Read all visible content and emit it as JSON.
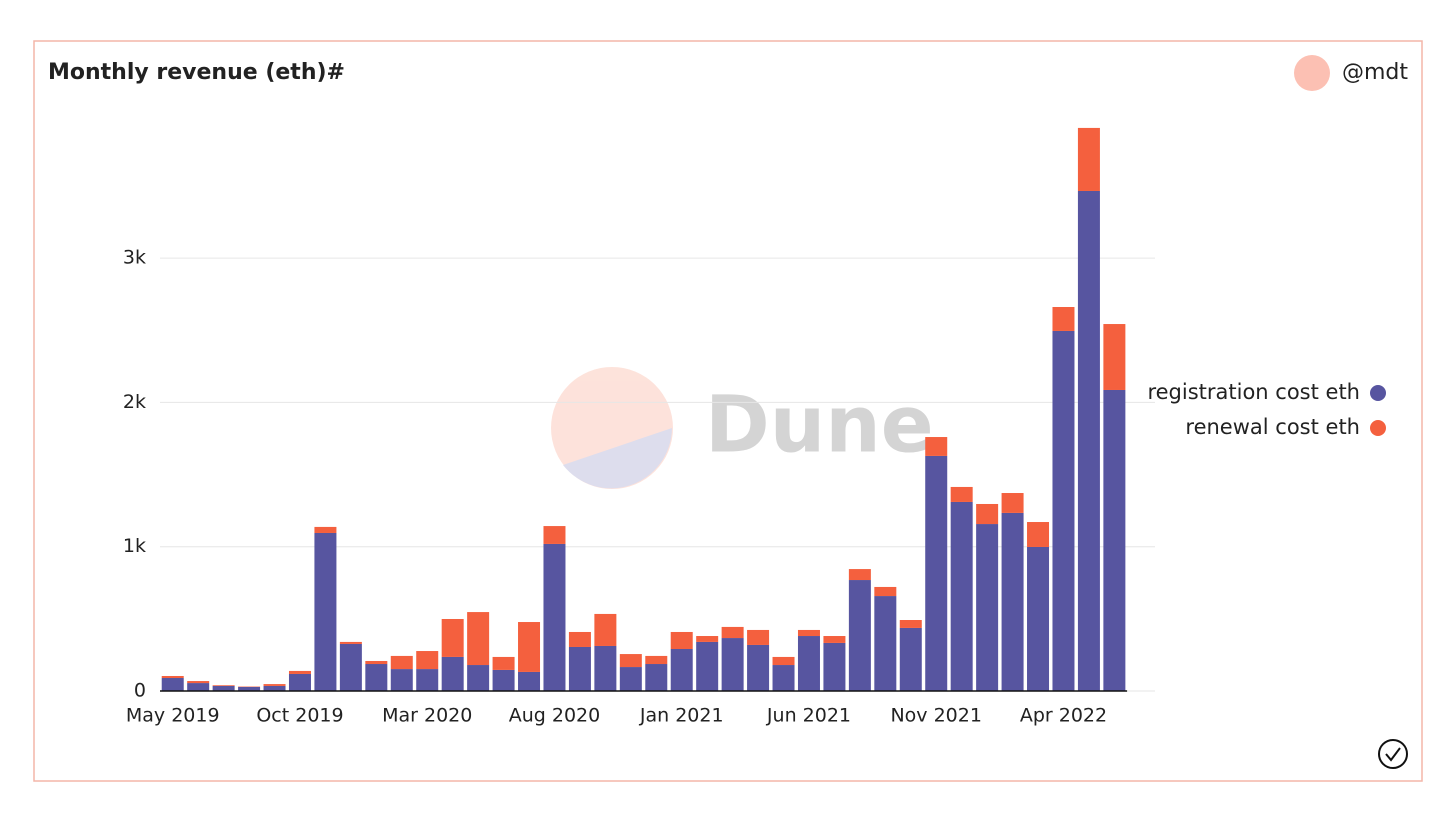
{
  "chart_data": {
    "type": "stacked_bar",
    "title": "Monthly revenue (eth)#",
    "author": "@mdt",
    "watermark": "Dune",
    "categories": [
      "May 2019",
      null,
      null,
      null,
      null,
      "Oct 2019",
      null,
      null,
      null,
      null,
      "Mar 2020",
      null,
      null,
      null,
      null,
      "Aug 2020",
      null,
      null,
      null,
      null,
      "Jan 2021",
      null,
      null,
      null,
      null,
      "Jun 2021",
      null,
      null,
      null,
      null,
      "Nov 2021",
      null,
      null,
      null,
      null,
      "Apr 2022",
      null,
      null
    ],
    "series": [
      {
        "name": "registration cost eth",
        "color": "#5755a0",
        "values": [
          90,
          55,
          35,
          28,
          35,
          118,
          1095,
          326,
          187,
          152,
          152,
          236,
          180,
          146,
          132,
          1019,
          305,
          312,
          166,
          187,
          291,
          340,
          367,
          319,
          180,
          381,
          333,
          769,
          658,
          437,
          1629,
          1310,
          1157,
          1234,
          998,
          2495,
          3465,
          2086
        ]
      },
      {
        "name": "renewal cost eth",
        "color": "#f4603e",
        "values": [
          14,
          14,
          5,
          3,
          13,
          21,
          42,
          14,
          21,
          91,
          125,
          263,
          367,
          90,
          346,
          124,
          104,
          222,
          90,
          56,
          118,
          41,
          77,
          104,
          56,
          42,
          48,
          76,
          63,
          55,
          131,
          104,
          139,
          138,
          173,
          166,
          437,
          457
        ]
      }
    ],
    "ylim": [
      0,
      3950
    ],
    "yticks": [
      0,
      {
        "value": 1000,
        "label": "1k"
      },
      {
        "value": 2000,
        "label": "2k"
      },
      {
        "value": 3000,
        "label": "3k"
      }
    ],
    "grid": true,
    "legend": "right"
  }
}
